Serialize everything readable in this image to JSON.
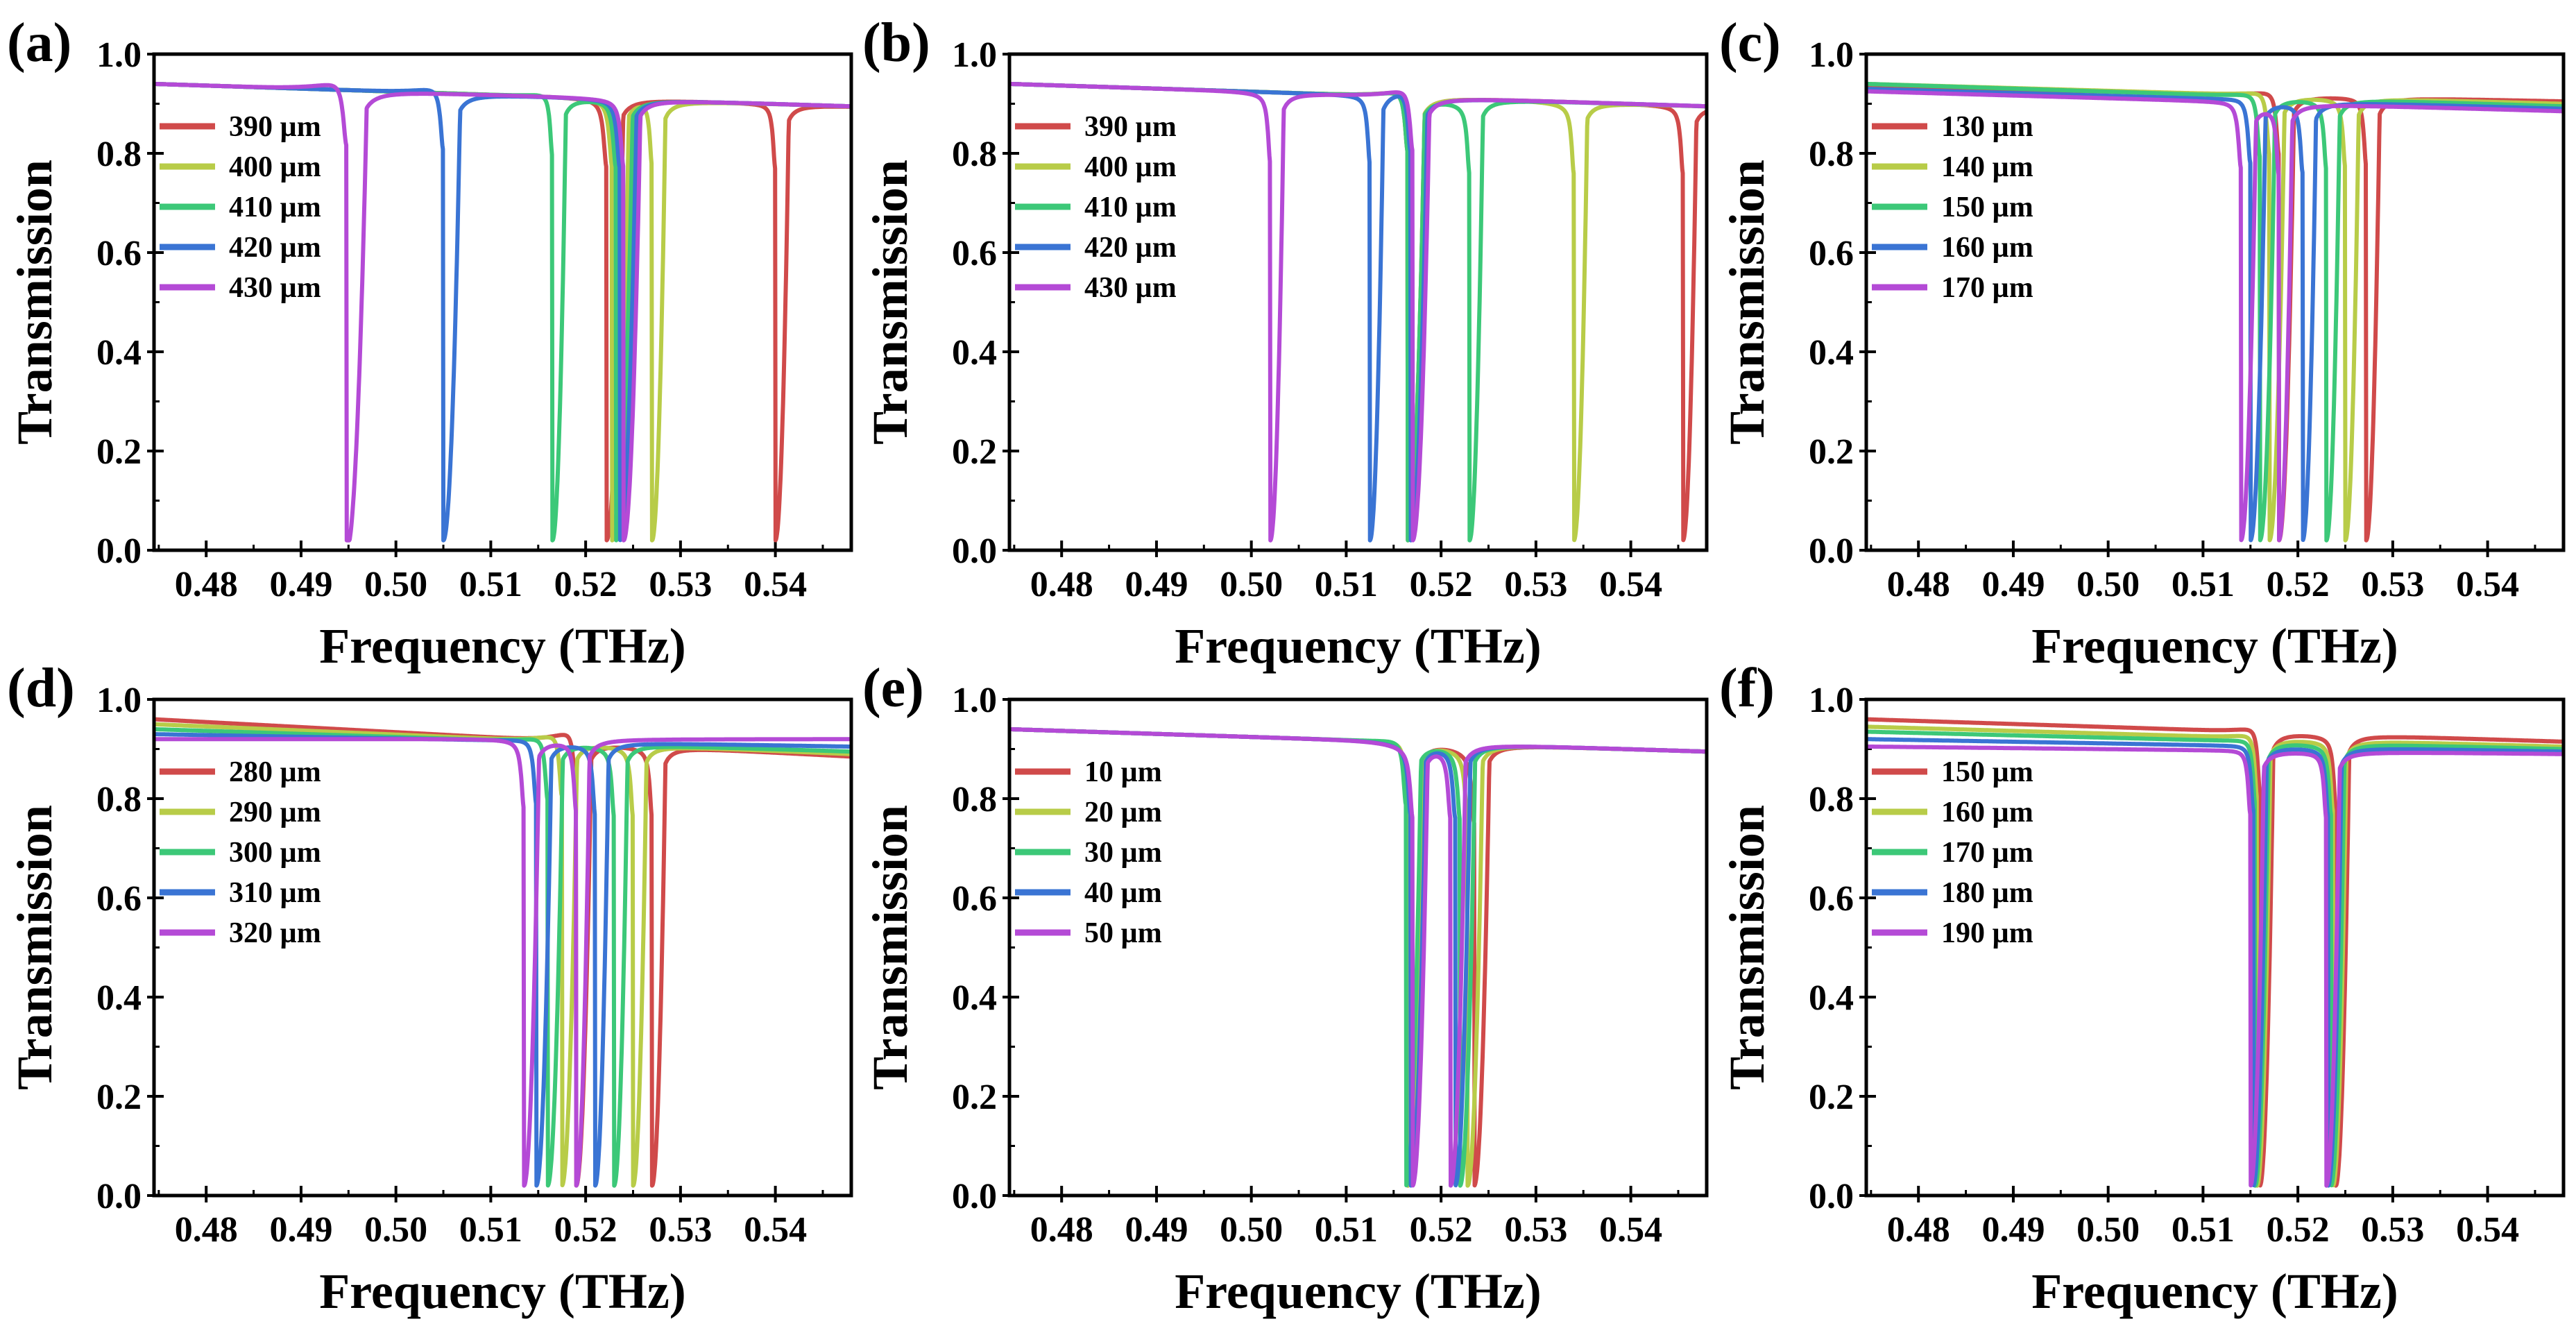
{
  "chart_data": [
    {
      "panel": "(a)",
      "type": "line",
      "xlabel": "Frequency (THz)",
      "ylabel": "Transmission",
      "xlim": [
        0.4745,
        0.548
      ],
      "ylim": [
        0,
        1.0
      ],
      "xticks": [
        "0.48",
        "0.49",
        "0.50",
        "0.51",
        "0.52",
        "0.53",
        "0.54"
      ],
      "yticks": [
        "0.0",
        "0.2",
        "0.4",
        "0.6",
        "0.8",
        "1.0"
      ],
      "legend_position": "top-left",
      "series": [
        {
          "name": "390 µm",
          "color": "#d04a4a",
          "start": 0.94,
          "end": 0.895,
          "resonances": [
            {
              "f": 0.5222,
              "peak": 0.905,
              "depth": 0.02,
              "w": 0.001
            },
            {
              "f": 0.54,
              "peak": 0.9,
              "depth": 0.02,
              "w": 0.0008
            }
          ]
        },
        {
          "name": "400 µm",
          "color": "#b8cc48",
          "start": 0.94,
          "end": 0.895,
          "resonances": [
            {
              "f": 0.5228,
              "peak": 0.905,
              "depth": 0.02,
              "w": 0.001
            },
            {
              "f": 0.527,
              "peak": 0.915,
              "depth": 0.02,
              "w": 0.0008
            }
          ]
        },
        {
          "name": "410 µm",
          "color": "#3cc878",
          "start": 0.94,
          "end": 0.895,
          "resonances": [
            {
              "f": 0.5165,
              "peak": 0.93,
              "depth": 0.02,
              "w": 0.0008
            },
            {
              "f": 0.5232,
              "peak": 0.905,
              "depth": 0.02,
              "w": 0.001
            }
          ]
        },
        {
          "name": "420 µm",
          "color": "#3a74d4",
          "start": 0.94,
          "end": 0.895,
          "resonances": [
            {
              "f": 0.505,
              "peak": 0.945,
              "depth": 0.02,
              "w": 0.001
            },
            {
              "f": 0.5236,
              "peak": 0.905,
              "depth": 0.02,
              "w": 0.001
            }
          ]
        },
        {
          "name": "430 µm",
          "color": "#b44ad6",
          "start": 0.94,
          "end": 0.895,
          "resonances": [
            {
              "f": 0.4948,
              "peak": 0.96,
              "depth": 0.0,
              "w": 0.0012
            },
            {
              "f": 0.524,
              "peak": 0.905,
              "depth": 0.02,
              "w": 0.001
            }
          ]
        }
      ]
    },
    {
      "panel": "(b)",
      "type": "line",
      "xlabel": "Frequency (THz)",
      "ylabel": "Transmission",
      "xlim": [
        0.4745,
        0.548
      ],
      "ylim": [
        0,
        1.0
      ],
      "xticks": [
        "0.48",
        "0.49",
        "0.50",
        "0.51",
        "0.52",
        "0.53",
        "0.54"
      ],
      "yticks": [
        "0.0",
        "0.2",
        "0.4",
        "0.6",
        "0.8",
        "1.0"
      ],
      "legend_position": "top-left",
      "series": [
        {
          "name": "390 µm",
          "color": "#d04a4a",
          "start": 0.94,
          "end": 0.895,
          "resonances": [
            {
              "f": 0.5165,
              "peak": 0.94,
              "depth": 0.02,
              "w": 0.001
            },
            {
              "f": 0.5455,
              "peak": 0.89,
              "depth": 0.02,
              "w": 0.0008
            }
          ]
        },
        {
          "name": "400 µm",
          "color": "#b8cc48",
          "start": 0.94,
          "end": 0.895,
          "resonances": [
            {
              "f": 0.5165,
              "peak": 0.94,
              "depth": 0.02,
              "w": 0.001
            },
            {
              "f": 0.534,
              "peak": 0.89,
              "depth": 0.02,
              "w": 0.0008
            }
          ]
        },
        {
          "name": "410 µm",
          "color": "#3cc878",
          "start": 0.94,
          "end": 0.895,
          "resonances": [
            {
              "f": 0.5165,
              "peak": 0.94,
              "depth": 0.02,
              "w": 0.001
            },
            {
              "f": 0.523,
              "peak": 0.89,
              "depth": 0.02,
              "w": 0.0008
            }
          ]
        },
        {
          "name": "420 µm",
          "color": "#3a74d4",
          "start": 0.94,
          "end": 0.895,
          "resonances": [
            {
              "f": 0.5125,
              "peak": 0.91,
              "depth": 0.02,
              "w": 0.0008
            },
            {
              "f": 0.5168,
              "peak": 0.945,
              "depth": 0.02,
              "w": 0.001
            }
          ]
        },
        {
          "name": "430 µm",
          "color": "#b44ad6",
          "start": 0.94,
          "end": 0.895,
          "resonances": [
            {
              "f": 0.502,
              "peak": 0.915,
              "depth": 0.02,
              "w": 0.0008
            },
            {
              "f": 0.517,
              "peak": 0.945,
              "depth": 0.02,
              "w": 0.001
            }
          ]
        }
      ]
    },
    {
      "panel": "(c)",
      "type": "line",
      "xlabel": "Frequency (THz)",
      "ylabel": "Transmission",
      "xlim": [
        0.4745,
        0.548
      ],
      "ylim": [
        0,
        1.0
      ],
      "xticks": [
        "0.48",
        "0.49",
        "0.50",
        "0.51",
        "0.52",
        "0.53",
        "0.54"
      ],
      "yticks": [
        "0.0",
        "0.2",
        "0.4",
        "0.6",
        "0.8",
        "1.0"
      ],
      "legend_position": "top-left",
      "series": [
        {
          "name": "130 µm",
          "color": "#d04a4a",
          "start": 0.935,
          "end": 0.905,
          "resonances": [
            {
              "f": 0.518,
              "peak": 0.935,
              "depth": 0.02,
              "w": 0.0009
            },
            {
              "f": 0.5272,
              "peak": 0.91,
              "depth": 0.02,
              "w": 0.0008
            }
          ]
        },
        {
          "name": "140 µm",
          "color": "#b8cc48",
          "start": 0.94,
          "end": 0.9,
          "resonances": [
            {
              "f": 0.517,
              "peak": 0.935,
              "depth": 0.02,
              "w": 0.0009
            },
            {
              "f": 0.525,
              "peak": 0.905,
              "depth": 0.02,
              "w": 0.0008
            }
          ]
        },
        {
          "name": "150 µm",
          "color": "#3cc878",
          "start": 0.94,
          "end": 0.895,
          "resonances": [
            {
              "f": 0.516,
              "peak": 0.93,
              "depth": 0.02,
              "w": 0.0009
            },
            {
              "f": 0.523,
              "peak": 0.9,
              "depth": 0.02,
              "w": 0.0008
            }
          ]
        },
        {
          "name": "160 µm",
          "color": "#3a74d4",
          "start": 0.93,
          "end": 0.89,
          "resonances": [
            {
              "f": 0.515,
              "peak": 0.915,
              "depth": 0.02,
              "w": 0.0009
            },
            {
              "f": 0.5205,
              "peak": 0.895,
              "depth": 0.02,
              "w": 0.0008
            }
          ]
        },
        {
          "name": "170 µm",
          "color": "#b44ad6",
          "start": 0.925,
          "end": 0.885,
          "resonances": [
            {
              "f": 0.514,
              "peak": 0.905,
              "depth": 0.02,
              "w": 0.0009
            },
            {
              "f": 0.518,
              "peak": 0.89,
              "depth": 0.02,
              "w": 0.0008
            }
          ]
        }
      ]
    },
    {
      "panel": "(d)",
      "type": "line",
      "xlabel": "Frequency (THz)",
      "ylabel": "Transmission",
      "xlim": [
        0.4745,
        0.548
      ],
      "ylim": [
        0,
        1.0
      ],
      "xticks": [
        "0.48",
        "0.49",
        "0.50",
        "0.51",
        "0.52",
        "0.53",
        "0.54"
      ],
      "yticks": [
        "0.0",
        "0.2",
        "0.4",
        "0.6",
        "0.8",
        "1.0"
      ],
      "legend_position": "top-left",
      "series": [
        {
          "name": "280 µm",
          "color": "#d04a4a",
          "start": 0.96,
          "end": 0.885,
          "resonances": [
            {
              "f": 0.519,
              "peak": 0.955,
              "depth": 0.02,
              "w": 0.0009
            },
            {
              "f": 0.527,
              "peak": 0.895,
              "depth": 0.02,
              "w": 0.0008
            }
          ]
        },
        {
          "name": "290 µm",
          "color": "#b8cc48",
          "start": 0.95,
          "end": 0.89,
          "resonances": [
            {
              "f": 0.5175,
              "peak": 0.945,
              "depth": 0.02,
              "w": 0.0009
            },
            {
              "f": 0.525,
              "peak": 0.895,
              "depth": 0.02,
              "w": 0.0008
            }
          ]
        },
        {
          "name": "300 µm",
          "color": "#3cc878",
          "start": 0.94,
          "end": 0.895,
          "resonances": [
            {
              "f": 0.516,
              "peak": 0.935,
              "depth": 0.02,
              "w": 0.0009
            },
            {
              "f": 0.523,
              "peak": 0.895,
              "depth": 0.02,
              "w": 0.0008
            }
          ]
        },
        {
          "name": "310 µm",
          "color": "#3a74d4",
          "start": 0.93,
          "end": 0.905,
          "resonances": [
            {
              "f": 0.5148,
              "peak": 0.925,
              "depth": 0.02,
              "w": 0.0009
            },
            {
              "f": 0.521,
              "peak": 0.9,
              "depth": 0.02,
              "w": 0.0008
            }
          ]
        },
        {
          "name": "320 µm",
          "color": "#b44ad6",
          "start": 0.92,
          "end": 0.92,
          "resonances": [
            {
              "f": 0.5135,
              "peak": 0.915,
              "depth": 0.02,
              "w": 0.0009
            },
            {
              "f": 0.519,
              "peak": 0.91,
              "depth": 0.02,
              "w": 0.0008
            }
          ]
        }
      ]
    },
    {
      "panel": "(e)",
      "type": "line",
      "xlabel": "Frequency (THz)",
      "ylabel": "Transmission",
      "xlim": [
        0.4745,
        0.548
      ],
      "ylim": [
        0,
        1.0
      ],
      "xticks": [
        "0.48",
        "0.49",
        "0.50",
        "0.51",
        "0.52",
        "0.53",
        "0.54"
      ],
      "yticks": [
        "0.0",
        "0.2",
        "0.4",
        "0.6",
        "0.8",
        "1.0"
      ],
      "legend_position": "top-left",
      "series": [
        {
          "name": "10 µm",
          "color": "#d04a4a",
          "start": 0.94,
          "end": 0.895,
          "resonances": [
            {
              "f": 0.5165,
              "peak": 0.915,
              "depth": 0.02,
              "w": 0.0009
            },
            {
              "f": 0.5235,
              "peak": 0.88,
              "depth": 0.02,
              "w": 0.0009
            }
          ]
        },
        {
          "name": "20 µm",
          "color": "#b8cc48",
          "start": 0.94,
          "end": 0.895,
          "resonances": [
            {
              "f": 0.5165,
              "peak": 0.92,
              "depth": 0.02,
              "w": 0.0009
            },
            {
              "f": 0.5228,
              "peak": 0.885,
              "depth": 0.02,
              "w": 0.0009
            }
          ]
        },
        {
          "name": "30 µm",
          "color": "#3cc878",
          "start": 0.94,
          "end": 0.895,
          "resonances": [
            {
              "f": 0.5163,
              "peak": 0.925,
              "depth": 0.02,
              "w": 0.0009
            },
            {
              "f": 0.522,
              "peak": 0.89,
              "depth": 0.02,
              "w": 0.0009
            }
          ]
        },
        {
          "name": "40 µm",
          "color": "#3a74d4",
          "start": 0.94,
          "end": 0.895,
          "resonances": [
            {
              "f": 0.5168,
              "peak": 0.9,
              "depth": 0.02,
              "w": 0.0009
            },
            {
              "f": 0.5215,
              "peak": 0.895,
              "depth": 0.02,
              "w": 0.0009
            }
          ]
        },
        {
          "name": "50 µm",
          "color": "#b44ad6",
          "start": 0.94,
          "end": 0.895,
          "resonances": [
            {
              "f": 0.517,
              "peak": 0.895,
              "depth": 0.02,
              "w": 0.0009
            },
            {
              "f": 0.521,
              "peak": 0.895,
              "depth": 0.02,
              "w": 0.0009
            }
          ]
        }
      ]
    },
    {
      "panel": "(f)",
      "type": "line",
      "xlabel": "Frequency (THz)",
      "ylabel": "Transmission",
      "xlim": [
        0.4745,
        0.548
      ],
      "ylim": [
        0,
        1.0
      ],
      "xticks": [
        "0.48",
        "0.49",
        "0.50",
        "0.51",
        "0.52",
        "0.53",
        "0.54"
      ],
      "yticks": [
        "0.0",
        "0.2",
        "0.4",
        "0.6",
        "0.8",
        "1.0"
      ],
      "legend_position": "top-left",
      "series": [
        {
          "name": "150 µm",
          "color": "#d04a4a",
          "start": 0.96,
          "end": 0.915,
          "resonances": [
            {
              "f": 0.516,
              "peak": 0.955,
              "depth": 0.02,
              "w": 0.0008
            },
            {
              "f": 0.524,
              "peak": 0.92,
              "depth": 0.02,
              "w": 0.0008
            }
          ]
        },
        {
          "name": "160 µm",
          "color": "#b8cc48",
          "start": 0.945,
          "end": 0.905,
          "resonances": [
            {
              "f": 0.5157,
              "peak": 0.94,
              "depth": 0.02,
              "w": 0.0008
            },
            {
              "f": 0.5237,
              "peak": 0.91,
              "depth": 0.02,
              "w": 0.0008
            }
          ]
        },
        {
          "name": "170 µm",
          "color": "#3cc878",
          "start": 0.935,
          "end": 0.9,
          "resonances": [
            {
              "f": 0.5155,
              "peak": 0.925,
              "depth": 0.02,
              "w": 0.0008
            },
            {
              "f": 0.5235,
              "peak": 0.9,
              "depth": 0.02,
              "w": 0.0008
            }
          ]
        },
        {
          "name": "180 µm",
          "color": "#3a74d4",
          "start": 0.92,
          "end": 0.895,
          "resonances": [
            {
              "f": 0.5153,
              "peak": 0.91,
              "depth": 0.02,
              "w": 0.0008
            },
            {
              "f": 0.5232,
              "peak": 0.895,
              "depth": 0.02,
              "w": 0.0008
            }
          ]
        },
        {
          "name": "190 µm",
          "color": "#b44ad6",
          "start": 0.905,
          "end": 0.89,
          "resonances": [
            {
              "f": 0.515,
              "peak": 0.9,
              "depth": 0.02,
              "w": 0.0008
            },
            {
              "f": 0.523,
              "peak": 0.89,
              "depth": 0.02,
              "w": 0.0008
            }
          ]
        }
      ]
    }
  ]
}
